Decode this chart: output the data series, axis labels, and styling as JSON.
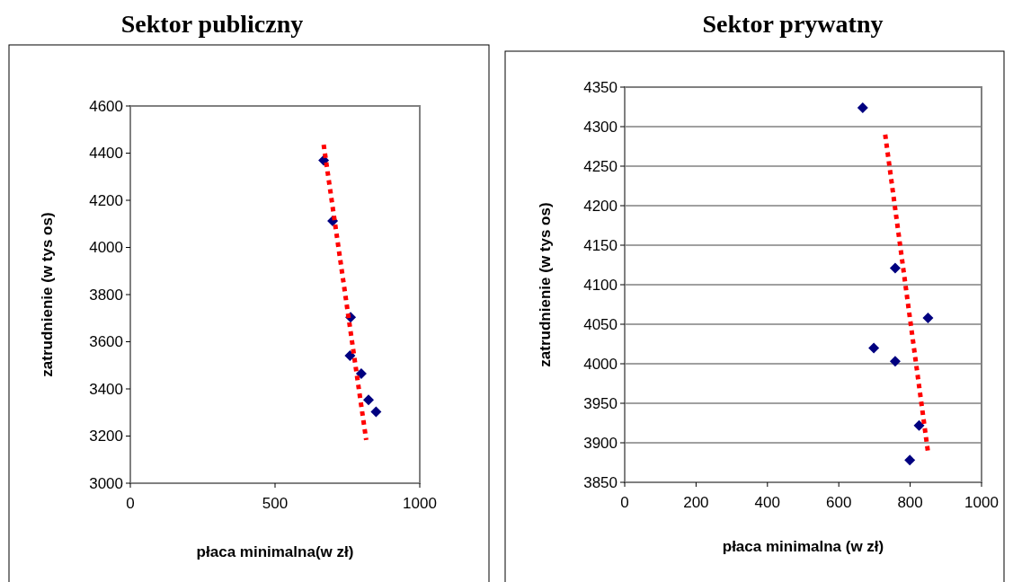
{
  "chart_data": [
    {
      "type": "scatter",
      "title": "Sektor publiczny",
      "xlabel": "płaca minimalna(w zł)",
      "ylabel": "zatrudnienie (w tys os)",
      "xlim": [
        0,
        1000
      ],
      "xticks": [
        0,
        500,
        1000
      ],
      "ylim": [
        3000,
        4600
      ],
      "yticks": [
        3000,
        3200,
        3400,
        3600,
        3800,
        4000,
        4200,
        4400,
        4600
      ],
      "grid": false,
      "series": [
        {
          "color": "#000080",
          "marker": "diamond",
          "x": [
            668,
            699,
            761,
            759,
            798,
            823,
            849
          ],
          "values": [
            4370,
            4112,
            3704,
            3541,
            3465,
            3353,
            3303
          ]
        },
        {
          "type": "line",
          "color": "#ff0000",
          "line_style": "dotted",
          "x": [
            668,
            815
          ],
          "values": [
            4436,
            3183
          ]
        }
      ]
    },
    {
      "type": "scatter",
      "title": "Sektor prywatny",
      "xlabel": "płaca minimalna (w zł)",
      "ylabel": "zatrudnienie (w tys os)",
      "xlim": [
        0,
        1000
      ],
      "xticks": [
        0,
        200,
        400,
        600,
        800,
        1000
      ],
      "ylim": [
        3850,
        4350
      ],
      "yticks": [
        3850,
        3900,
        3950,
        4000,
        4050,
        4100,
        4150,
        4200,
        4250,
        4300,
        4350
      ],
      "grid": "y",
      "series": [
        {
          "color": "#000080",
          "marker": "diamond",
          "x": [
            667,
            758,
            850,
            698,
            758,
            825,
            799
          ],
          "values": [
            4324,
            4121,
            4058,
            4020,
            4003,
            3922,
            3878
          ]
        },
        {
          "type": "line",
          "color": "#ff0000",
          "line_style": "dotted",
          "x": [
            730,
            850
          ],
          "values": [
            4290,
            3888
          ]
        }
      ]
    }
  ]
}
